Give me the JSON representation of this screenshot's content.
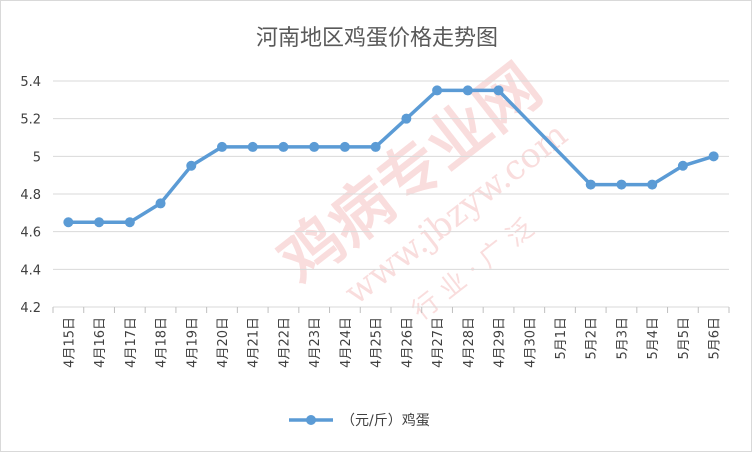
{
  "chart_data": {
    "type": "line",
    "title": "河南地区鸡蛋价格走势图",
    "xlabel": "",
    "ylabel": "",
    "categories": [
      "4月15日",
      "4月16日",
      "4月17日",
      "4月18日",
      "4月19日",
      "4月20日",
      "4月21日",
      "4月22日",
      "4月23日",
      "4月24日",
      "4月25日",
      "4月26日",
      "4月27日",
      "4月28日",
      "4月29日",
      "4月30日",
      "5月1日",
      "5月2日",
      "5月3日",
      "5月4日",
      "5月5日",
      "5月6日"
    ],
    "series": [
      {
        "name": "（元/斤）鸡蛋",
        "color": "#5b9bd5",
        "values": [
          4.65,
          4.65,
          4.65,
          4.75,
          4.95,
          5.05,
          5.05,
          5.05,
          5.05,
          5.05,
          5.05,
          5.2,
          5.35,
          5.35,
          5.35,
          null,
          null,
          4.85,
          4.85,
          4.85,
          4.95,
          5.0
        ]
      }
    ],
    "ylim": [
      4.2,
      5.4
    ],
    "yticks": [
      "4.2",
      "4.4",
      "4.6",
      "4.8",
      "5",
      "5.2",
      "5.4"
    ],
    "grid": true,
    "legend_position": "bottom"
  },
  "watermark": {
    "brand": "鸡病专业网",
    "url": "www.jbzyw.com",
    "slogan": "行 业 · 广 泛"
  }
}
